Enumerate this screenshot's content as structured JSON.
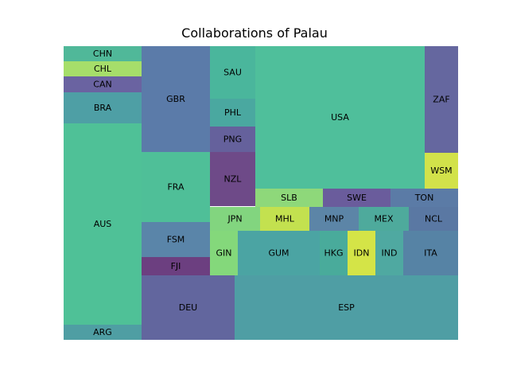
{
  "chart_data": {
    "type": "treemap",
    "title": "Collaborations of Palau",
    "cells": [
      {
        "label": "AUS",
        "color": "#4fc197"
      },
      {
        "label": "ESP",
        "color": "#4f9ea4"
      },
      {
        "label": "USA",
        "color": "#4fbf9b"
      },
      {
        "label": "GBR",
        "color": "#5b7ba9"
      },
      {
        "label": "DEU",
        "color": "#62669e"
      },
      {
        "label": "FRA",
        "color": "#4fbf98"
      },
      {
        "label": "ZAF",
        "color": "#65679f"
      },
      {
        "label": "NZL",
        "color": "#6e4a88"
      },
      {
        "label": "GUM",
        "color": "#4ba4a3"
      },
      {
        "label": "SAU",
        "color": "#4ab69c"
      },
      {
        "label": "FSM",
        "color": "#5a85a9"
      },
      {
        "label": "ITA",
        "color": "#5683a5"
      },
      {
        "label": "BRA",
        "color": "#4e9fa5"
      },
      {
        "label": "PHL",
        "color": "#4aa8a0"
      },
      {
        "label": "PNG",
        "color": "#65619c"
      },
      {
        "label": "FJI",
        "color": "#6c3f80"
      },
      {
        "label": "SWE",
        "color": "#6a5c9c"
      },
      {
        "label": "WSM",
        "color": "#d2e24a"
      },
      {
        "label": "MEX",
        "color": "#4eaa9c"
      },
      {
        "label": "SLB",
        "color": "#8ed87a"
      },
      {
        "label": "MHL",
        "color": "#c3e14f"
      },
      {
        "label": "JPN",
        "color": "#82d57f"
      },
      {
        "label": "MNP",
        "color": "#5c85a7"
      },
      {
        "label": "NCL",
        "color": "#5a78a3"
      },
      {
        "label": "TON",
        "color": "#5b7ba6"
      },
      {
        "label": "GIN",
        "color": "#84d87b"
      },
      {
        "label": "HKG",
        "color": "#49ab9b"
      },
      {
        "label": "IND",
        "color": "#4fa9a1"
      },
      {
        "label": "IDN",
        "color": "#d4e447"
      },
      {
        "label": "CHN",
        "color": "#50b899"
      },
      {
        "label": "CHL",
        "color": "#a6de6a"
      },
      {
        "label": "CAN",
        "color": "#6a63a1"
      },
      {
        "label": "ARG",
        "color": "#4f9ea3"
      }
    ]
  }
}
